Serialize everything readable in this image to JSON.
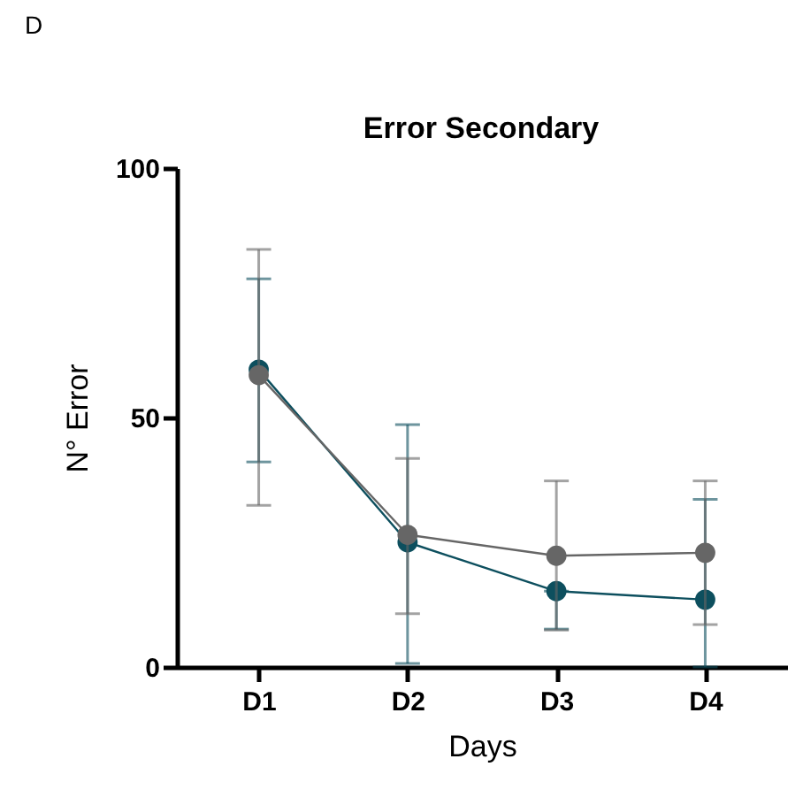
{
  "chart_data": {
    "type": "line",
    "title": "Error Secondary",
    "xlabel": "Days",
    "ylabel": "N° Error",
    "annotations": [
      "D"
    ],
    "categories": [
      "D1",
      "D2",
      "D3",
      "D4"
    ],
    "series": [
      {
        "color": "#0d4f5e",
        "values": [
          59.6,
          25,
          15.2,
          13.5
        ],
        "errors": [
          [
            41.1,
            77.8
          ],
          [
            0.7,
            48.6
          ],
          [
            7.6,
            15.2
          ],
          [
            0,
            33.6
          ]
        ]
      },
      {
        "color": "#666666",
        "values": [
          58.5,
          26.5,
          22.3,
          22.9
        ],
        "errors": [
          [
            32.4,
            83.7
          ],
          [
            10.7,
            41.8
          ],
          [
            7.4,
            37.3
          ],
          [
            8.5,
            37.3
          ]
        ]
      }
    ],
    "ylim": [
      0,
      100
    ],
    "yticks": [
      0,
      50,
      100
    ],
    "grid": false,
    "legend": false,
    "marker": "circle",
    "line_style": "solid"
  }
}
